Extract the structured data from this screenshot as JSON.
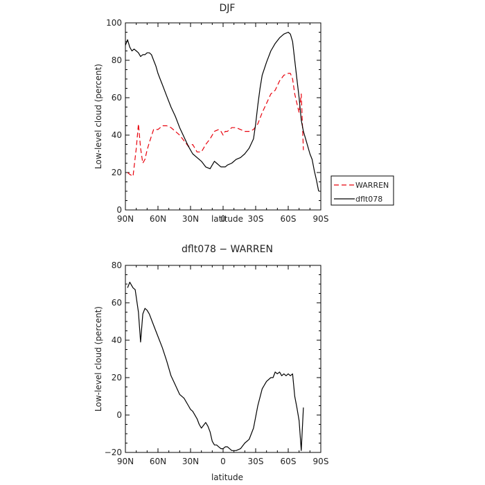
{
  "chart_data": [
    {
      "type": "line",
      "title": "DJF",
      "xlabel": "latitude",
      "ylabel": "Low-level cloud (percent)",
      "xlim": [
        90,
        -90
      ],
      "ylim": [
        0,
        100
      ],
      "x_ticks": [
        90,
        60,
        30,
        0,
        -30,
        -60,
        -90
      ],
      "x_tick_labels": [
        "90N",
        "60N",
        "30N",
        "0",
        "30S",
        "60S",
        "90S"
      ],
      "y_ticks": [
        0,
        20,
        40,
        60,
        80,
        100
      ],
      "y_tick_labels": [
        "0",
        "20",
        "40",
        "60",
        "80",
        "100"
      ],
      "legend": {
        "placement": "outside-right"
      },
      "series": [
        {
          "name": "WARREN",
          "color": "#e8000b",
          "style": "dashed",
          "x": [
            88,
            86,
            83,
            80,
            78,
            76,
            74,
            72,
            70,
            68,
            64,
            60,
            56,
            52,
            48,
            44,
            40,
            36,
            32,
            28,
            24,
            20,
            16,
            12,
            8,
            4,
            2,
            0,
            -2,
            -4,
            -8,
            -12,
            -16,
            -20,
            -24,
            -28,
            -32,
            -36,
            -40,
            -44,
            -48,
            -52,
            -56,
            -60,
            -62,
            -64,
            -66,
            -68,
            -70,
            -72,
            -74
          ],
          "y": [
            20,
            19,
            18,
            33,
            46,
            33,
            25,
            27,
            32,
            36,
            43,
            43,
            45,
            45,
            44,
            42,
            40,
            37,
            34,
            35,
            31,
            31,
            35,
            38,
            42,
            43,
            42,
            40,
            42,
            42,
            44,
            44,
            43,
            42,
            42,
            43,
            46,
            52,
            57,
            62,
            64,
            69,
            72,
            73,
            73,
            70,
            62,
            57,
            52,
            62,
            32
          ]
        },
        {
          "name": "dflt078",
          "color": "#000000",
          "style": "solid",
          "x": [
            90,
            88,
            86,
            84,
            82,
            80,
            78,
            76,
            74,
            72,
            70,
            68,
            66,
            64,
            62,
            60,
            58,
            56,
            52,
            48,
            44,
            40,
            36,
            32,
            28,
            24,
            20,
            16,
            12,
            10,
            8,
            6,
            4,
            2,
            0,
            -2,
            -4,
            -8,
            -12,
            -16,
            -20,
            -24,
            -28,
            -30,
            -32,
            -34,
            -36,
            -40,
            -44,
            -48,
            -52,
            -56,
            -60,
            -62,
            -64,
            -66,
            -68,
            -70,
            -72,
            -74,
            -76,
            -78,
            -80,
            -82,
            -84,
            -86,
            -88
          ],
          "y": [
            88,
            91,
            87,
            85,
            86,
            85,
            84,
            82,
            83,
            83,
            84,
            84,
            83,
            80,
            77,
            73,
            70,
            67,
            61,
            55,
            50,
            44,
            39,
            34,
            30,
            28,
            26,
            23,
            22,
            24,
            26,
            25,
            24,
            23,
            23,
            23,
            24,
            25,
            27,
            28,
            30,
            33,
            38,
            46,
            56,
            65,
            72,
            79,
            85,
            89,
            92,
            94,
            95,
            94,
            90,
            80,
            70,
            60,
            48,
            42,
            38,
            34,
            30,
            27,
            21,
            16,
            10
          ]
        }
      ]
    },
    {
      "type": "line",
      "title": "dflt078 − WARREN",
      "xlabel": "latitude",
      "ylabel": "Low-level cloud (percent)",
      "xlim": [
        90,
        -90
      ],
      "ylim": [
        -20,
        80
      ],
      "x_ticks": [
        90,
        60,
        30,
        0,
        -30,
        -60,
        -90
      ],
      "x_tick_labels": [
        "90N",
        "60N",
        "30N",
        "0",
        "30S",
        "60S",
        "90S"
      ],
      "y_ticks": [
        -20,
        0,
        20,
        40,
        60,
        80
      ],
      "y_tick_labels": [
        "−20",
        "0",
        "20",
        "40",
        "60",
        "80"
      ],
      "series": [
        {
          "name": "dflt078 − WARREN",
          "color": "#000000",
          "style": "solid",
          "x": [
            88,
            86,
            84,
            83,
            81,
            78,
            76,
            74,
            72,
            70,
            68,
            64,
            60,
            56,
            52,
            48,
            44,
            40,
            36,
            32,
            30,
            28,
            24,
            22,
            20,
            16,
            14,
            12,
            10,
            8,
            6,
            4,
            2,
            0,
            -2,
            -4,
            -6,
            -8,
            -10,
            -12,
            -16,
            -20,
            -24,
            -28,
            -32,
            -36,
            -40,
            -44,
            -46,
            -48,
            -50,
            -52,
            -54,
            -56,
            -58,
            -60,
            -62,
            -64,
            -66,
            -68,
            -70,
            -72,
            -74
          ],
          "y": [
            68,
            71,
            69,
            68,
            67,
            55,
            39,
            54,
            57,
            56,
            54,
            48,
            42,
            36,
            29,
            21,
            16,
            11,
            9,
            5,
            3,
            2,
            -2,
            -5,
            -7,
            -4,
            -6,
            -9,
            -14,
            -16,
            -16,
            -17,
            -18,
            -18,
            -17,
            -17,
            -18,
            -19,
            -19,
            -19,
            -18,
            -15,
            -13,
            -7,
            5,
            14,
            18,
            20,
            20,
            23,
            22,
            23,
            21,
            22,
            21,
            22,
            21,
            22,
            10,
            4,
            -3,
            -19,
            4
          ]
        }
      ]
    }
  ]
}
